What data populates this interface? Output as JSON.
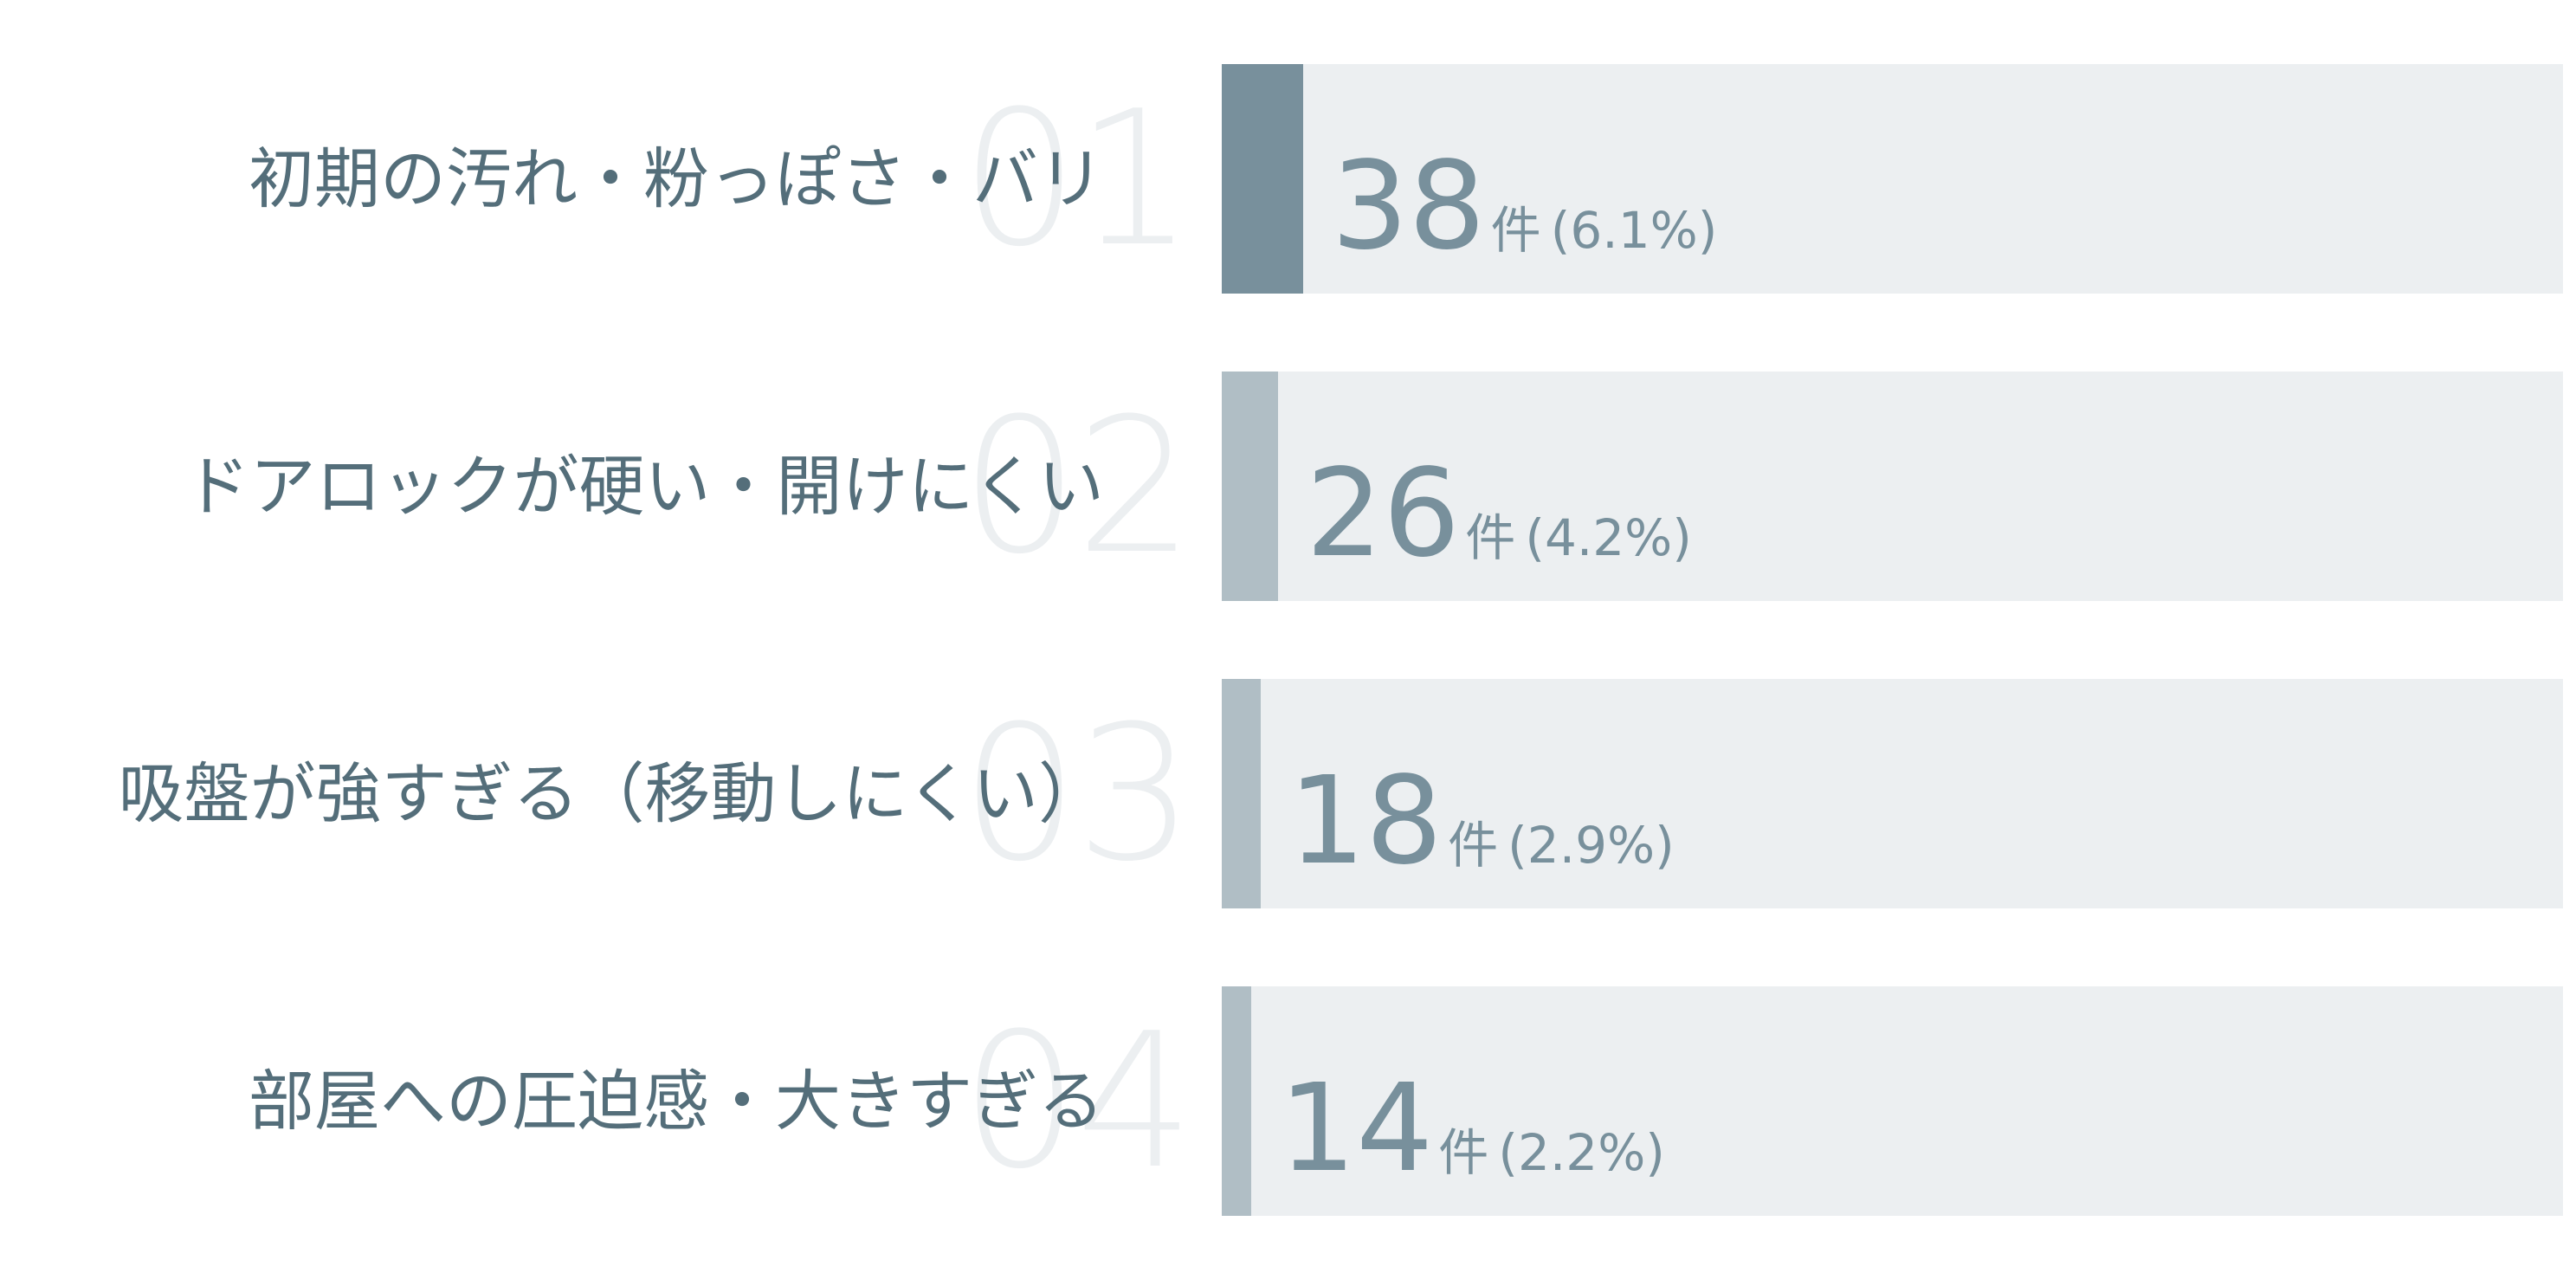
{
  "chart_data": {
    "type": "bar",
    "orientation": "horizontal",
    "categories": [
      "初期の汚れ・粉っぽさ・バリ",
      "ドアロックが硬い・開けにくい",
      "吸盤が強すぎる（移動しにくい）",
      "部屋への圧迫感・大きすぎる"
    ],
    "ranks": [
      "01",
      "02",
      "03",
      "04"
    ],
    "values": [
      38,
      26,
      18,
      14
    ],
    "percents": [
      6.1,
      4.2,
      2.9,
      2.2
    ],
    "percent_labels": [
      "(6.1%)",
      "(4.2%)",
      "(2.9%)",
      "(2.2%)"
    ],
    "unit": "件",
    "colors": {
      "top_fill": "#78909c",
      "fill": "#b0bec5",
      "track": "#eceff1",
      "label": "#546e7a",
      "value": "#78909c",
      "rank": "#eceff1"
    }
  }
}
